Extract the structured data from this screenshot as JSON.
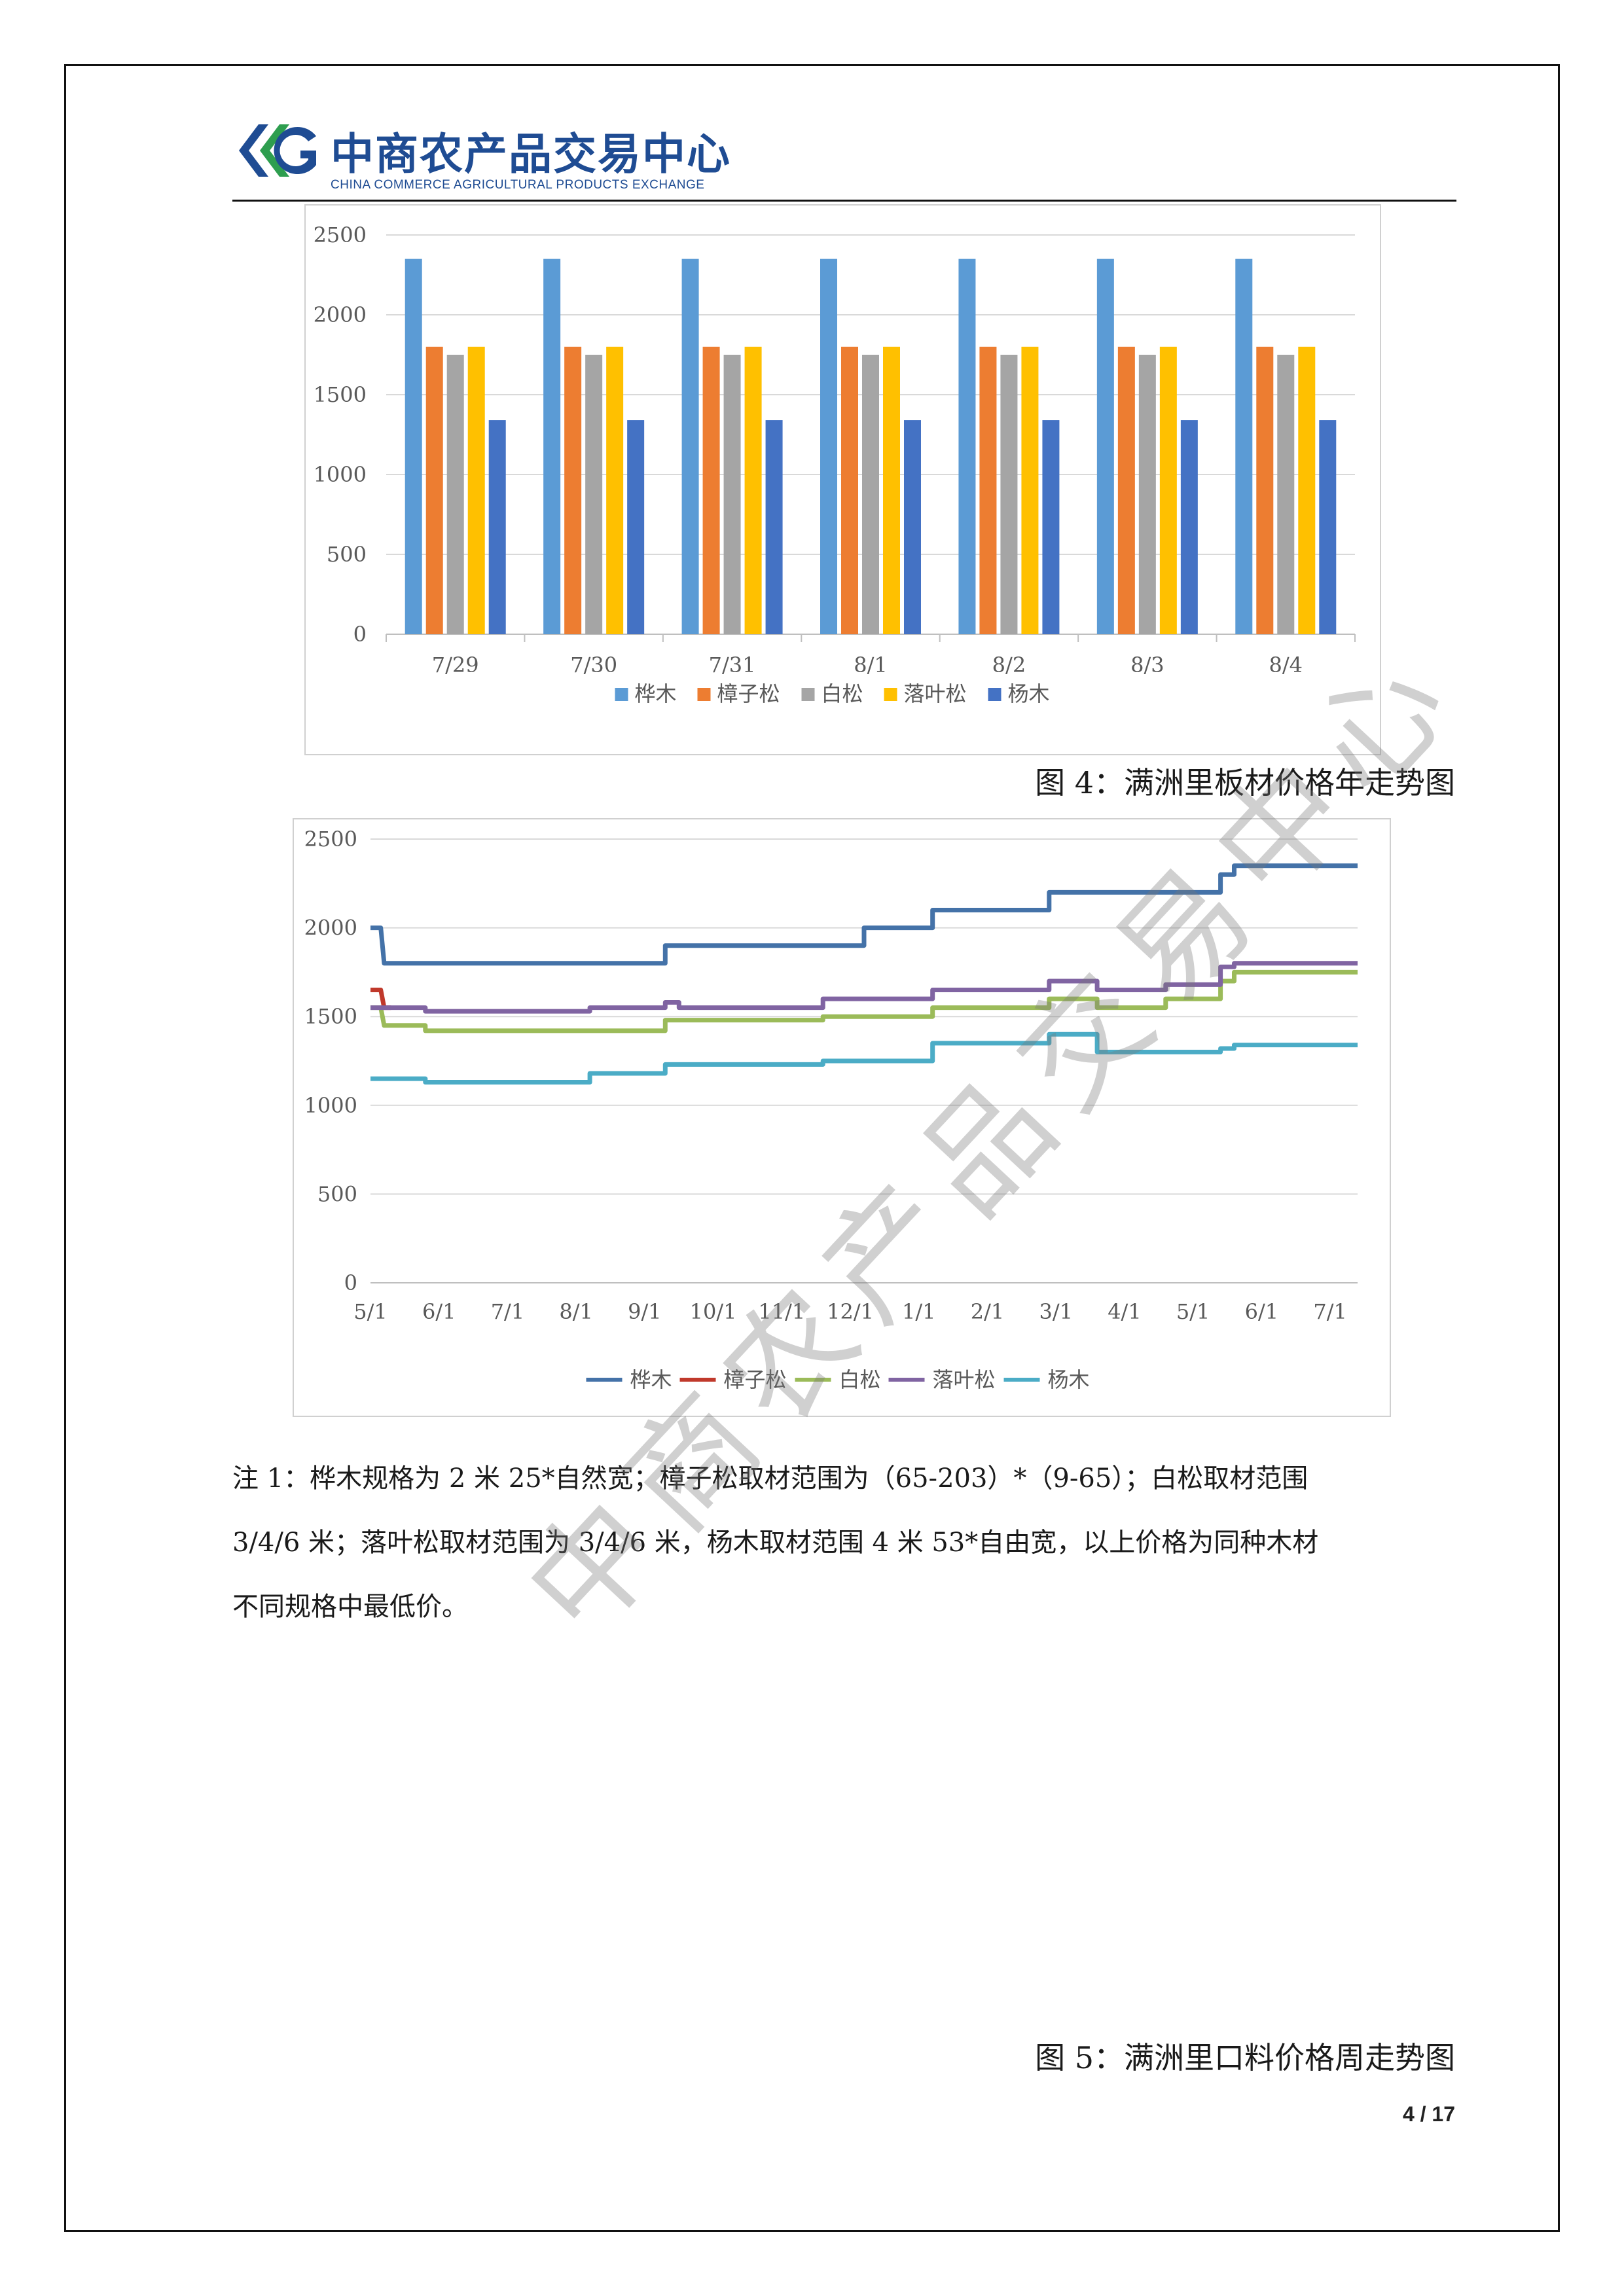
{
  "header": {
    "logo_title": "中商农产品交易中心",
    "logo_subtitle": "CHINA COMMERCE AGRICULTURAL PRODUCTS EXCHANGE",
    "brand_colors": [
      "#1f4c93",
      "#2e9e4f"
    ]
  },
  "captions": {
    "fig4": "图 4：满洲里板材价格年走势图",
    "fig5": "图 5：满洲里口料价格周走势图"
  },
  "note": {
    "line1": "注 1：桦木规格为 2 米 25*自然宽；樟子松取材范围为（65-203）*（9-65）；白松取材范围",
    "line2": "3/4/6 米；落叶松取材范围为 3/4/6 米，杨木取材范围 4 米 53*自由宽，以上价格为同种木材",
    "line3": "不同规格中最低价。"
  },
  "page_number": "4 / 17",
  "watermark": "中商农产品交易中心",
  "chart_data": [
    {
      "type": "bar",
      "categories": [
        "7/29",
        "7/30",
        "7/31",
        "8/1",
        "8/2",
        "8/3",
        "8/4"
      ],
      "ylim": [
        0,
        2500
      ],
      "yticks": [
        "0",
        "500",
        "1000",
        "1500",
        "2000",
        "2500"
      ],
      "grid": true,
      "legend": "bottom",
      "series": [
        {
          "name": "桦木",
          "color": "#5b9bd5",
          "values": [
            2350,
            2350,
            2350,
            2350,
            2350,
            2350,
            2350
          ]
        },
        {
          "name": "樟子松",
          "color": "#ed7d31",
          "values": [
            1800,
            1800,
            1800,
            1800,
            1800,
            1800,
            1800
          ]
        },
        {
          "name": "白松",
          "color": "#a5a5a5",
          "values": [
            1750,
            1750,
            1750,
            1750,
            1750,
            1750,
            1750
          ]
        },
        {
          "name": "落叶松",
          "color": "#ffc000",
          "values": [
            1800,
            1800,
            1800,
            1800,
            1800,
            1800,
            1800
          ]
        },
        {
          "name": "杨木",
          "color": "#4472c4",
          "values": [
            1340,
            1340,
            1340,
            1340,
            1340,
            1340,
            1340
          ]
        }
      ]
    },
    {
      "type": "line",
      "xticks": [
        "5/1",
        "6/1",
        "7/1",
        "8/1",
        "9/1",
        "10/1",
        "11/1",
        "12/1",
        "1/1",
        "2/1",
        "3/1",
        "4/1",
        "5/1",
        "6/1",
        "7/1"
      ],
      "ylim": [
        0,
        2500
      ],
      "yticks": [
        "0",
        "500",
        "1000",
        "1500",
        "2000",
        "2500"
      ],
      "grid": true,
      "legend": "bottom",
      "x_unit": "months since 5/1",
      "series": [
        {
          "name": "桦木",
          "color": "#4472a8",
          "points": [
            [
              0,
              2000
            ],
            [
              0.15,
              2000
            ],
            [
              0.2,
              1800
            ],
            [
              4.3,
              1800
            ],
            [
              4.3,
              1900
            ],
            [
              7.2,
              1900
            ],
            [
              7.2,
              2000
            ],
            [
              8.2,
              2000
            ],
            [
              8.2,
              2100
            ],
            [
              9.9,
              2100
            ],
            [
              9.9,
              2200
            ],
            [
              12.4,
              2200
            ],
            [
              12.4,
              2300
            ],
            [
              12.6,
              2300
            ],
            [
              12.6,
              2350
            ],
            [
              14.4,
              2350
            ]
          ]
        },
        {
          "name": "樟子松",
          "color": "#c0392b",
          "points": [
            [
              0,
              1650
            ],
            [
              0.15,
              1650
            ],
            [
              0.2,
              1550
            ],
            [
              0.3,
              1550
            ]
          ]
        },
        {
          "name": "白松",
          "color": "#9bbb59",
          "points": [
            [
              0,
              1550
            ],
            [
              0.15,
              1550
            ],
            [
              0.2,
              1450
            ],
            [
              0.8,
              1450
            ],
            [
              0.8,
              1420
            ],
            [
              4.3,
              1420
            ],
            [
              4.3,
              1480
            ],
            [
              6.6,
              1480
            ],
            [
              6.6,
              1500
            ],
            [
              8.2,
              1500
            ],
            [
              8.2,
              1550
            ],
            [
              9.9,
              1550
            ],
            [
              9.9,
              1600
            ],
            [
              10.6,
              1600
            ],
            [
              10.6,
              1550
            ],
            [
              11.6,
              1550
            ],
            [
              11.6,
              1600
            ],
            [
              12.4,
              1600
            ],
            [
              12.4,
              1700
            ],
            [
              12.6,
              1700
            ],
            [
              12.6,
              1750
            ],
            [
              14.4,
              1750
            ]
          ]
        },
        {
          "name": "落叶松",
          "color": "#8064a2",
          "points": [
            [
              0,
              1550
            ],
            [
              0.8,
              1550
            ],
            [
              0.8,
              1530
            ],
            [
              3.2,
              1530
            ],
            [
              3.2,
              1550
            ],
            [
              4.3,
              1550
            ],
            [
              4.3,
              1580
            ],
            [
              4.5,
              1580
            ],
            [
              4.5,
              1550
            ],
            [
              6.6,
              1550
            ],
            [
              6.6,
              1600
            ],
            [
              8.2,
              1600
            ],
            [
              8.2,
              1650
            ],
            [
              9.9,
              1650
            ],
            [
              9.9,
              1700
            ],
            [
              10.6,
              1700
            ],
            [
              10.6,
              1650
            ],
            [
              11.6,
              1650
            ],
            [
              11.6,
              1680
            ],
            [
              12.4,
              1680
            ],
            [
              12.4,
              1780
            ],
            [
              12.6,
              1780
            ],
            [
              12.6,
              1800
            ],
            [
              14.4,
              1800
            ]
          ]
        },
        {
          "name": "杨木",
          "color": "#4bacc6",
          "points": [
            [
              0,
              1150
            ],
            [
              0.8,
              1150
            ],
            [
              0.8,
              1130
            ],
            [
              3.2,
              1130
            ],
            [
              3.2,
              1180
            ],
            [
              4.3,
              1180
            ],
            [
              4.3,
              1230
            ],
            [
              6.6,
              1230
            ],
            [
              6.6,
              1250
            ],
            [
              8.2,
              1250
            ],
            [
              8.2,
              1350
            ],
            [
              9.9,
              1350
            ],
            [
              9.9,
              1400
            ],
            [
              10.6,
              1400
            ],
            [
              10.6,
              1300
            ],
            [
              12.4,
              1300
            ],
            [
              12.4,
              1320
            ],
            [
              12.6,
              1320
            ],
            [
              12.6,
              1340
            ],
            [
              14.4,
              1340
            ]
          ]
        }
      ]
    }
  ]
}
